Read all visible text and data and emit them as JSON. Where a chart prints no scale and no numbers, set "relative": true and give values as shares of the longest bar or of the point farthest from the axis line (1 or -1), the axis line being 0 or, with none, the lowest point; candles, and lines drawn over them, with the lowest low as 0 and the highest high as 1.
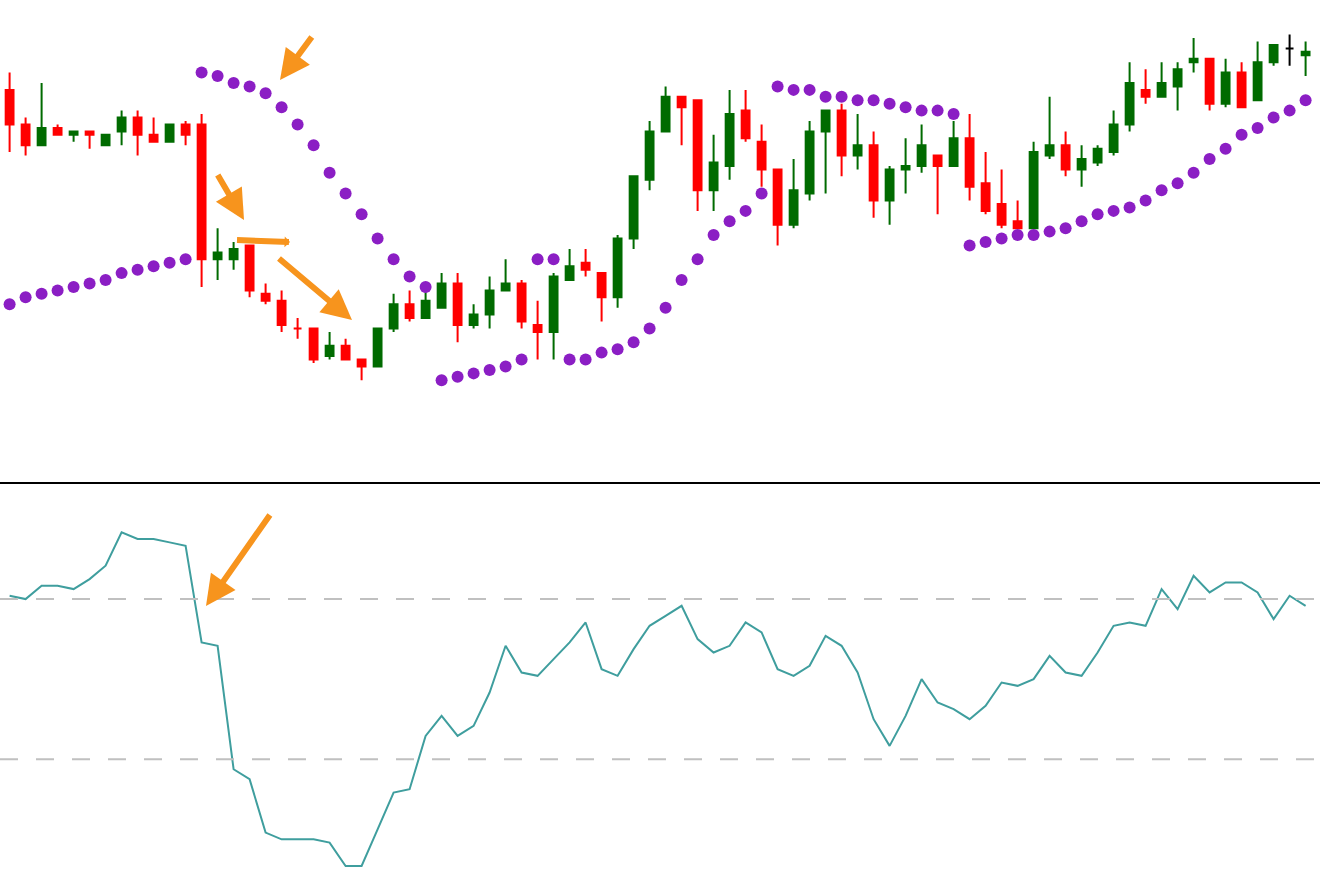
{
  "chart_data": [
    {
      "type": "candlestick",
      "relative": true,
      "tick_labels": false,
      "grid": false,
      "marker": "circle",
      "categories": [
        null,
        null,
        null,
        null,
        null,
        null,
        null,
        null,
        null,
        null,
        null,
        null,
        null,
        null,
        null,
        null,
        null,
        null,
        null,
        null,
        null,
        null,
        null,
        null,
        null,
        null,
        null,
        null,
        null,
        null,
        null,
        null,
        null,
        null,
        null,
        null,
        null,
        null,
        null,
        null,
        null,
        null,
        null,
        null,
        null,
        null,
        null,
        null,
        null,
        null,
        null,
        null,
        null,
        null,
        null,
        null,
        null,
        null,
        null,
        null,
        null,
        null,
        null,
        null,
        null,
        null,
        null,
        null,
        null,
        null,
        null,
        null,
        null,
        null,
        null,
        null,
        null,
        null,
        null,
        null,
        null,
        null
      ],
      "ohlc": [
        [
          0.84,
          0.89,
          0.66,
          0.74
        ],
        [
          0.74,
          0.76,
          0.65,
          0.68
        ],
        [
          0.68,
          0.86,
          0.68,
          0.73
        ],
        [
          0.73,
          0.74,
          0.71,
          0.71
        ],
        [
          0.71,
          0.72,
          0.69,
          0.72
        ],
        [
          0.72,
          0.72,
          0.67,
          0.71
        ],
        [
          0.68,
          0.71,
          0.68,
          0.71
        ],
        [
          0.72,
          0.78,
          0.68,
          0.76
        ],
        [
          0.76,
          0.78,
          0.65,
          0.71
        ],
        [
          0.71,
          0.76,
          0.69,
          0.69
        ],
        [
          0.69,
          0.74,
          0.69,
          0.74
        ],
        [
          0.74,
          0.75,
          0.68,
          0.71
        ],
        [
          0.74,
          0.77,
          0.27,
          0.35
        ],
        [
          0.35,
          0.44,
          0.29,
          0.37
        ],
        [
          0.35,
          0.4,
          0.32,
          0.38
        ],
        [
          0.39,
          0.39,
          0.24,
          0.26
        ],
        [
          0.25,
          0.28,
          0.22,
          0.23
        ],
        [
          0.23,
          0.26,
          0.14,
          0.16
        ],
        [
          0.15,
          0.18,
          0.12,
          0.15
        ],
        [
          0.15,
          0.15,
          0.05,
          0.06
        ],
        [
          0.07,
          0.14,
          0.06,
          0.1
        ],
        [
          0.1,
          0.12,
          0.06,
          0.06
        ],
        [
          0.06,
          0.06,
          0,
          0.04
        ],
        [
          0.04,
          0.15,
          0.04,
          0.15
        ],
        [
          0.15,
          0.25,
          0.14,
          0.22
        ],
        [
          0.22,
          0.26,
          0.17,
          0.18
        ],
        [
          0.18,
          0.26,
          0.18,
          0.23
        ],
        [
          0.21,
          0.31,
          0.21,
          0.28
        ],
        [
          0.28,
          0.31,
          0.11,
          0.16
        ],
        [
          0.16,
          0.22,
          0.15,
          0.19
        ],
        [
          0.19,
          0.3,
          0.15,
          0.26
        ],
        [
          0.26,
          0.35,
          0.26,
          0.28
        ],
        [
          0.28,
          0.29,
          0.15,
          0.17
        ],
        [
          0.16,
          0.23,
          0.06,
          0.14
        ],
        [
          0.14,
          0.31,
          0.06,
          0.3
        ],
        [
          0.29,
          0.38,
          0.29,
          0.33
        ],
        [
          0.34,
          0.38,
          0.3,
          0.32
        ],
        [
          0.31,
          0.31,
          0.17,
          0.24
        ],
        [
          0.24,
          0.42,
          0.21,
          0.41
        ],
        [
          0.41,
          0.59,
          0.38,
          0.59
        ],
        [
          0.58,
          0.75,
          0.55,
          0.72
        ],
        [
          0.72,
          0.85,
          0.72,
          0.82
        ],
        [
          0.82,
          0.82,
          0.68,
          0.79
        ],
        [
          0.81,
          0.81,
          0.49,
          0.55
        ],
        [
          0.55,
          0.71,
          0.49,
          0.63
        ],
        [
          0.62,
          0.84,
          0.58,
          0.77
        ],
        [
          0.78,
          0.84,
          0.69,
          0.7
        ],
        [
          0.69,
          0.74,
          0.56,
          0.61
        ],
        [
          0.61,
          0.61,
          0.39,
          0.45
        ],
        [
          0.45,
          0.64,
          0.44,
          0.55
        ],
        [
          0.54,
          0.75,
          0.52,
          0.72
        ],
        [
          0.72,
          0.78,
          0.54,
          0.78
        ],
        [
          0.78,
          0.8,
          0.59,
          0.65
        ],
        [
          0.65,
          0.77,
          0.61,
          0.68
        ],
        [
          0.68,
          0.72,
          0.47,
          0.52
        ],
        [
          0.52,
          0.62,
          0.45,
          0.61
        ],
        [
          0.61,
          0.7,
          0.54,
          0.62
        ],
        [
          0.62,
          0.74,
          0.6,
          0.68
        ],
        [
          0.65,
          0.65,
          0.48,
          0.62
        ],
        [
          0.62,
          0.75,
          0.62,
          0.7
        ],
        [
          0.7,
          0.77,
          0.52,
          0.56
        ],
        [
          0.57,
          0.66,
          0.48,
          0.49
        ],
        [
          0.51,
          0.61,
          0.44,
          0.45
        ],
        [
          0.46,
          0.52,
          0.44,
          0.44
        ],
        [
          0.44,
          0.69,
          0.44,
          0.66
        ],
        [
          0.65,
          0.82,
          0.64,
          0.68
        ],
        [
          0.68,
          0.72,
          0.59,
          0.61
        ],
        [
          0.61,
          0.68,
          0.56,
          0.64
        ],
        [
          0.63,
          0.68,
          0.62,
          0.67
        ],
        [
          0.66,
          0.78,
          0.65,
          0.74
        ],
        [
          0.74,
          0.92,
          0.72,
          0.86
        ],
        [
          0.84,
          0.9,
          0.8,
          0.82
        ],
        [
          0.82,
          0.92,
          0.82,
          0.86
        ],
        [
          0.85,
          0.92,
          0.78,
          0.9
        ],
        [
          0.92,
          0.99,
          0.89,
          0.93
        ],
        [
          0.93,
          0.93,
          0.78,
          0.8
        ],
        [
          0.8,
          0.93,
          0.79,
          0.89
        ],
        [
          0.89,
          0.92,
          0.79,
          0.79
        ],
        [
          0.81,
          0.98,
          0.81,
          0.92
        ],
        [
          0.92,
          0.97,
          0.91,
          0.97
        ],
        [
          0.96,
          1,
          0.91,
          0.96
        ],
        [
          0.94,
          0.98,
          0.88,
          0.95
        ]
      ],
      "colors": [
        "#ff0000",
        "#ff0000",
        "#006b00",
        "#ff0000",
        "#006b00",
        "#ff0000",
        "#006b00",
        "#006b00",
        "#ff0000",
        "#ff0000",
        "#006b00",
        "#ff0000",
        "#ff0000",
        "#006b00",
        "#006b00",
        "#ff0000",
        "#ff0000",
        "#ff0000",
        "#ff0000",
        "#ff0000",
        "#006b00",
        "#ff0000",
        "#ff0000",
        "#006b00",
        "#006b00",
        "#ff0000",
        "#006b00",
        "#006b00",
        "#ff0000",
        "#006b00",
        "#006b00",
        "#006b00",
        "#ff0000",
        "#ff0000",
        "#006b00",
        "#006b00",
        "#ff0000",
        "#ff0000",
        "#006b00",
        "#006b00",
        "#006b00",
        "#006b00",
        "#ff0000",
        "#ff0000",
        "#006b00",
        "#006b00",
        "#ff0000",
        "#ff0000",
        "#ff0000",
        "#006b00",
        "#006b00",
        "#006b00",
        "#ff0000",
        "#006b00",
        "#ff0000",
        "#006b00",
        "#006b00",
        "#006b00",
        "#ff0000",
        "#006b00",
        "#ff0000",
        "#ff0000",
        "#ff0000",
        "#ff0000",
        "#006b00",
        "#006b00",
        "#ff0000",
        "#006b00",
        "#006b00",
        "#006b00",
        "#006b00",
        "#ff0000",
        "#006b00",
        "#006b00",
        "#006b00",
        "#ff0000",
        "#006b00",
        "#ff0000",
        "#006b00",
        "#006b00",
        "#000000",
        "#006b00"
      ],
      "series": [
        {
          "type": "scatter",
          "color": "#8b1ec4",
          "values": [
            0.22,
            0.24,
            0.25,
            0.26,
            0.27,
            0.28,
            0.29,
            0.31,
            0.32,
            0.33,
            0.34,
            0.35,
            0.89,
            0.88,
            0.86,
            0.85,
            0.83,
            0.79,
            0.74,
            0.68,
            0.6,
            0.54,
            0.48,
            0.41,
            0.35,
            0.3,
            0.27,
            0,
            0.01,
            0.02,
            0.03,
            0.04,
            0.06,
            0.35,
            0.35,
            0.06,
            0.06,
            0.08,
            0.09,
            0.11,
            0.15,
            0.21,
            0.29,
            0.35,
            0.42,
            0.46,
            0.49,
            0.54,
            0.85,
            0.84,
            0.84,
            0.82,
            0.82,
            0.81,
            0.81,
            0.8,
            0.79,
            0.78,
            0.78,
            0.77,
            0.39,
            0.4,
            0.41,
            0.42,
            0.42,
            0.43,
            0.44,
            0.46,
            0.48,
            0.49,
            0.5,
            0.52,
            0.55,
            0.57,
            0.6,
            0.64,
            0.67,
            0.71,
            0.73,
            0.76,
            0.78,
            0.81
          ]
        }
      ]
    },
    {
      "type": "line",
      "relative": true,
      "tick_labels": false,
      "grid": false,
      "line_style": "solid",
      "categories": [
        null,
        null,
        null,
        null,
        null,
        null,
        null,
        null,
        null,
        null,
        null,
        null,
        null,
        null,
        null,
        null,
        null,
        null,
        null,
        null,
        null,
        null,
        null,
        null,
        null,
        null,
        null,
        null,
        null,
        null,
        null,
        null,
        null,
        null,
        null,
        null,
        null,
        null,
        null,
        null,
        null,
        null,
        null,
        null,
        null,
        null,
        null,
        null,
        null,
        null,
        null,
        null,
        null,
        null,
        null,
        null,
        null,
        null,
        null,
        null,
        null,
        null,
        null,
        null,
        null,
        null,
        null,
        null,
        null,
        null,
        null,
        null,
        null,
        null,
        null,
        null,
        null,
        null,
        null,
        null,
        null,
        null
      ],
      "series": [
        {
          "color": "#3f9e9e",
          "values": [
            0.81,
            0.8,
            0.84,
            0.84,
            0.83,
            0.86,
            0.9,
            1,
            0.98,
            0.98,
            0.97,
            0.96,
            0.67,
            0.66,
            0.29,
            0.26,
            0.1,
            0.08,
            0.08,
            0.08,
            0.07,
            0,
            0,
            0.11,
            0.22,
            0.23,
            0.39,
            0.45,
            0.39,
            0.42,
            0.52,
            0.66,
            0.58,
            0.57,
            0.62,
            0.67,
            0.73,
            0.59,
            0.57,
            0.65,
            0.72,
            0.75,
            0.78,
            0.68,
            0.64,
            0.66,
            0.73,
            0.7,
            0.59,
            0.57,
            0.6,
            0.69,
            0.66,
            0.58,
            0.44,
            0.36,
            0.45,
            0.56,
            0.49,
            0.47,
            0.44,
            0.48,
            0.55,
            0.54,
            0.56,
            0.63,
            0.58,
            0.57,
            0.64,
            0.72,
            0.73,
            0.72,
            0.83,
            0.77,
            0.87,
            0.82,
            0.85,
            0.85,
            0.82,
            0.74,
            0.81,
            0.78
          ]
        }
      ],
      "ref_lines": [
        {
          "axis": "y",
          "value": 0.8,
          "color": "#c0c0c0",
          "line_style": "dashed"
        },
        {
          "axis": "y",
          "value": 0.32,
          "color": "#c0c0c0",
          "line_style": "dashed"
        }
      ]
    }
  ]
}
